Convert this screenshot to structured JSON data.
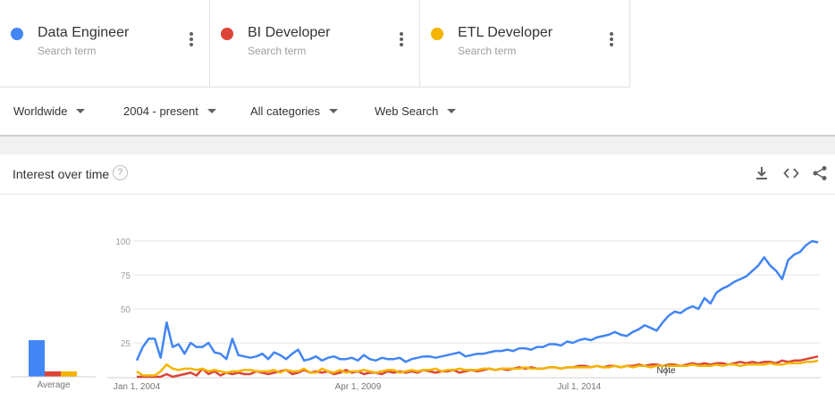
{
  "terms": [
    {
      "name": "Data Engineer",
      "sub": "Search term",
      "color": "#4285f4"
    },
    {
      "name": "BI Developer",
      "sub": "Search term",
      "color": "#db4437"
    },
    {
      "name": "ETL Developer",
      "sub": "Search term",
      "color": "#f4b400"
    }
  ],
  "filters": {
    "region": "Worldwide",
    "time": "2004 - present",
    "category": "All categories",
    "search_type": "Web Search"
  },
  "panel": {
    "title": "Interest over time",
    "help_icon": "?",
    "icons": [
      "download-icon",
      "embed-icon",
      "share-icon"
    ]
  },
  "chart_data": {
    "type": "line",
    "x_start": "2004-01",
    "x_ticks": [
      "Jan 1, 2004",
      "Apr 1, 2009",
      "Jul 1, 2014"
    ],
    "y_ticks": [
      25,
      50,
      75,
      100
    ],
    "ylim": [
      0,
      100
    ],
    "note_label": "Note",
    "average": {
      "label": "Average",
      "values": [
        27,
        4,
        4
      ]
    },
    "series": [
      {
        "name": "Data Engineer",
        "color": "#4285f4",
        "values": [
          12,
          22,
          28,
          28,
          14,
          40,
          22,
          24,
          17,
          25,
          22,
          22,
          25,
          18,
          17,
          13,
          28,
          16,
          15,
          14,
          15,
          17,
          13,
          18,
          16,
          13,
          17,
          20,
          12,
          13,
          15,
          12,
          14,
          15,
          13,
          13,
          14,
          12,
          16,
          13,
          12,
          14,
          13,
          13,
          14,
          11,
          13,
          14,
          15,
          15,
          14,
          15,
          16,
          17,
          18,
          15,
          16,
          17,
          17,
          18,
          19,
          19,
          20,
          19,
          21,
          21,
          20,
          22,
          22,
          24,
          24,
          23,
          26,
          25,
          27,
          28,
          27,
          29,
          30,
          31,
          33,
          31,
          30,
          33,
          35,
          38,
          36,
          34,
          40,
          45,
          48,
          47,
          50,
          52,
          50,
          58,
          54,
          62,
          65,
          67,
          70,
          72,
          74,
          78,
          82,
          88,
          82,
          78,
          72,
          86,
          90,
          92,
          97,
          100,
          99
        ]
      },
      {
        "name": "BI Developer",
        "color": "#db4437",
        "values": [
          0,
          0,
          0,
          0,
          0,
          2,
          0,
          1,
          2,
          3,
          1,
          6,
          2,
          4,
          1,
          3,
          2,
          3,
          2,
          2,
          4,
          3,
          2,
          3,
          4,
          5,
          2,
          3,
          5,
          3,
          4,
          3,
          4,
          2,
          3,
          5,
          3,
          4,
          2,
          3,
          3,
          2,
          4,
          3,
          4,
          3,
          4,
          3,
          5,
          4,
          3,
          4,
          4,
          5,
          3,
          4,
          5,
          4,
          5,
          6,
          5,
          6,
          5,
          6,
          7,
          6,
          7,
          6,
          6,
          7,
          7,
          6,
          7,
          7,
          8,
          8,
          7,
          8,
          7,
          8,
          8,
          7,
          8,
          8,
          9,
          8,
          9,
          9,
          8,
          9,
          9,
          8,
          9,
          10,
          9,
          10,
          9,
          10,
          10,
          9,
          10,
          11,
          10,
          11,
          10,
          11,
          11,
          10,
          12,
          11,
          12,
          12,
          13,
          14,
          15
        ]
      },
      {
        "name": "ETL Developer",
        "color": "#f4b400",
        "values": [
          4,
          1,
          1,
          1,
          4,
          9,
          6,
          5,
          6,
          6,
          5,
          6,
          4,
          5,
          4,
          3,
          4,
          4,
          5,
          5,
          4,
          4,
          4,
          5,
          3,
          5,
          4,
          4,
          6,
          3,
          3,
          6,
          4,
          3,
          5,
          3,
          4,
          4,
          5,
          4,
          3,
          4,
          5,
          5,
          3,
          4,
          5,
          4,
          5,
          5,
          6,
          4,
          5,
          5,
          6,
          5,
          5,
          5,
          6,
          6,
          5,
          6,
          6,
          6,
          6,
          7,
          6,
          6,
          6,
          7,
          7,
          6,
          7,
          7,
          7,
          7,
          7,
          8,
          7,
          7,
          8,
          7,
          8,
          7,
          8,
          8,
          7,
          8,
          8,
          8,
          8,
          8,
          8,
          9,
          8,
          8,
          8,
          9,
          8,
          9,
          9,
          8,
          9,
          9,
          9,
          9,
          10,
          9,
          9,
          10,
          10,
          10,
          11,
          11,
          12
        ]
      }
    ]
  }
}
